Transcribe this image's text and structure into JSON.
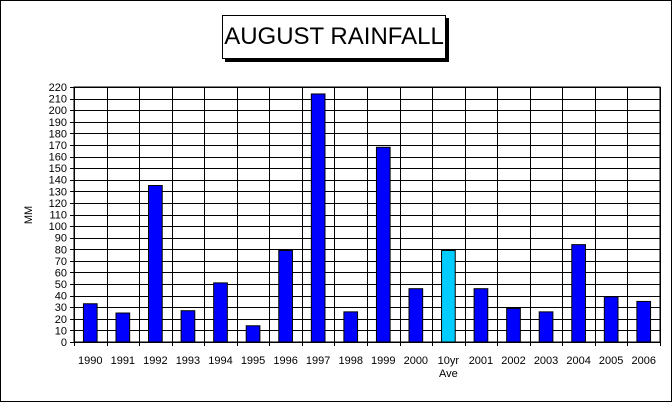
{
  "chart_data": {
    "type": "bar",
    "title": "AUGUST RAINFALL",
    "ylabel": "MM",
    "xlabel": "",
    "ylim": [
      0,
      220
    ],
    "ytick_step": 10,
    "grid": true,
    "categories": [
      "1990",
      "1991",
      "1992",
      "1993",
      "1994",
      "1995",
      "1996",
      "1997",
      "1998",
      "1999",
      "2000",
      "10yr Ave",
      "2001",
      "2002",
      "2003",
      "2004",
      "2005",
      "2006"
    ],
    "category_lines": [
      [
        "1990"
      ],
      [
        "1991"
      ],
      [
        "1992"
      ],
      [
        "1993"
      ],
      [
        "1994"
      ],
      [
        "1995"
      ],
      [
        "1996"
      ],
      [
        "1997"
      ],
      [
        "1998"
      ],
      [
        "1999"
      ],
      [
        "2000"
      ],
      [
        "10yr",
        "Ave"
      ],
      [
        "2001"
      ],
      [
        "2002"
      ],
      [
        "2003"
      ],
      [
        "2004"
      ],
      [
        "2005"
      ],
      [
        "2006"
      ]
    ],
    "values": [
      33,
      25,
      135,
      27,
      51,
      14,
      79,
      214,
      26,
      168,
      46,
      79,
      46,
      29,
      26,
      84,
      39,
      35
    ],
    "bar_colors": [
      "#0000ff",
      "#0000ff",
      "#0000ff",
      "#0000ff",
      "#0000ff",
      "#0000ff",
      "#0000ff",
      "#0000ff",
      "#0000ff",
      "#0000ff",
      "#0000ff",
      "#00ccff",
      "#0000ff",
      "#0000ff",
      "#0000ff",
      "#0000ff",
      "#0000ff",
      "#0000ff"
    ],
    "legend": "none"
  }
}
